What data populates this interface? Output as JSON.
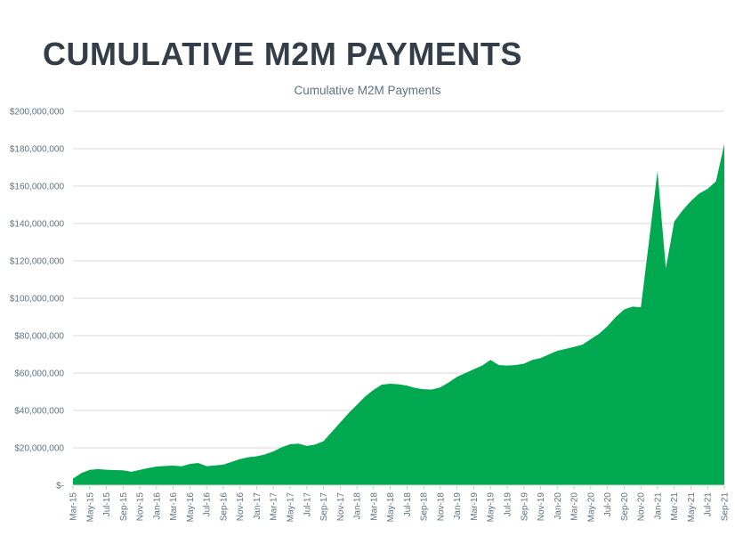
{
  "header": {
    "title": "CUMULATIVE M2M PAYMENTS"
  },
  "chart_data": {
    "type": "area",
    "title": "Cumulative M2M Payments",
    "fill_color": "#00A84F",
    "grid_color": "#D9D9D9",
    "tick_color": "#BFC6CC",
    "axis_label_color": "#5d7283",
    "grid": "horizontal",
    "legend": "none",
    "ylim": [
      0,
      200000000
    ],
    "y_tick_step": 20000000,
    "y_label_prefix": "$",
    "zero_label": "$-",
    "x_tick_every": 2,
    "categories": [
      "Mar-15",
      "Apr-15",
      "May-15",
      "Jun-15",
      "Jul-15",
      "Aug-15",
      "Sep-15",
      "Oct-15",
      "Nov-15",
      "Dec-15",
      "Jan-16",
      "Feb-16",
      "Mar-16",
      "Apr-16",
      "May-16",
      "Jun-16",
      "Jul-16",
      "Aug-16",
      "Sep-16",
      "Oct-16",
      "Nov-16",
      "Dec-16",
      "Jan-17",
      "Feb-17",
      "Mar-17",
      "Apr-17",
      "May-17",
      "Jun-17",
      "Jul-17",
      "Aug-17",
      "Sep-17",
      "Oct-17",
      "Nov-17",
      "Dec-17",
      "Jan-18",
      "Feb-18",
      "Mar-18",
      "Apr-18",
      "May-18",
      "Jun-18",
      "Jul-18",
      "Aug-18",
      "Sep-18",
      "Oct-18",
      "Nov-18",
      "Dec-18",
      "Jan-19",
      "Feb-19",
      "Mar-19",
      "Apr-19",
      "May-19",
      "Jun-19",
      "Jul-19",
      "Aug-19",
      "Sep-19",
      "Oct-19",
      "Nov-19",
      "Dec-19",
      "Jan-20",
      "Feb-20",
      "Mar-20",
      "Apr-20",
      "May-20",
      "Jun-20",
      "Jul-20",
      "Aug-20",
      "Sep-20",
      "Oct-20",
      "Nov-20",
      "Dec-20",
      "Jan-21",
      "Feb-21",
      "Mar-21",
      "Apr-21",
      "May-21",
      "Jun-21",
      "Jul-21",
      "Aug-21",
      "Sep-21"
    ],
    "values": [
      3500000,
      6500000,
      8200000,
      8600000,
      8300000,
      8100000,
      8000000,
      7200000,
      8200000,
      9200000,
      10000000,
      10300000,
      10500000,
      10100000,
      11400000,
      11900000,
      10200000,
      10600000,
      11000000,
      12500000,
      14000000,
      15000000,
      15500000,
      16500000,
      18100000,
      20300000,
      21900000,
      22300000,
      21000000,
      21800000,
      23500000,
      28500000,
      33500000,
      38500000,
      43000000,
      47500000,
      51000000,
      53800000,
      54300000,
      54000000,
      53300000,
      52000000,
      51300000,
      51200000,
      52400000,
      55000000,
      58000000,
      60000000,
      62000000,
      64000000,
      67000000,
      64300000,
      64000000,
      64300000,
      65000000,
      67000000,
      68000000,
      70000000,
      71900000,
      72900000,
      74000000,
      75200000,
      78100000,
      81000000,
      85000000,
      90000000,
      94000000,
      95500000,
      95200000,
      131000000,
      168000000,
      116000000,
      141000000,
      147000000,
      152000000,
      156000000,
      158500000,
      162500000,
      182500000
    ]
  }
}
